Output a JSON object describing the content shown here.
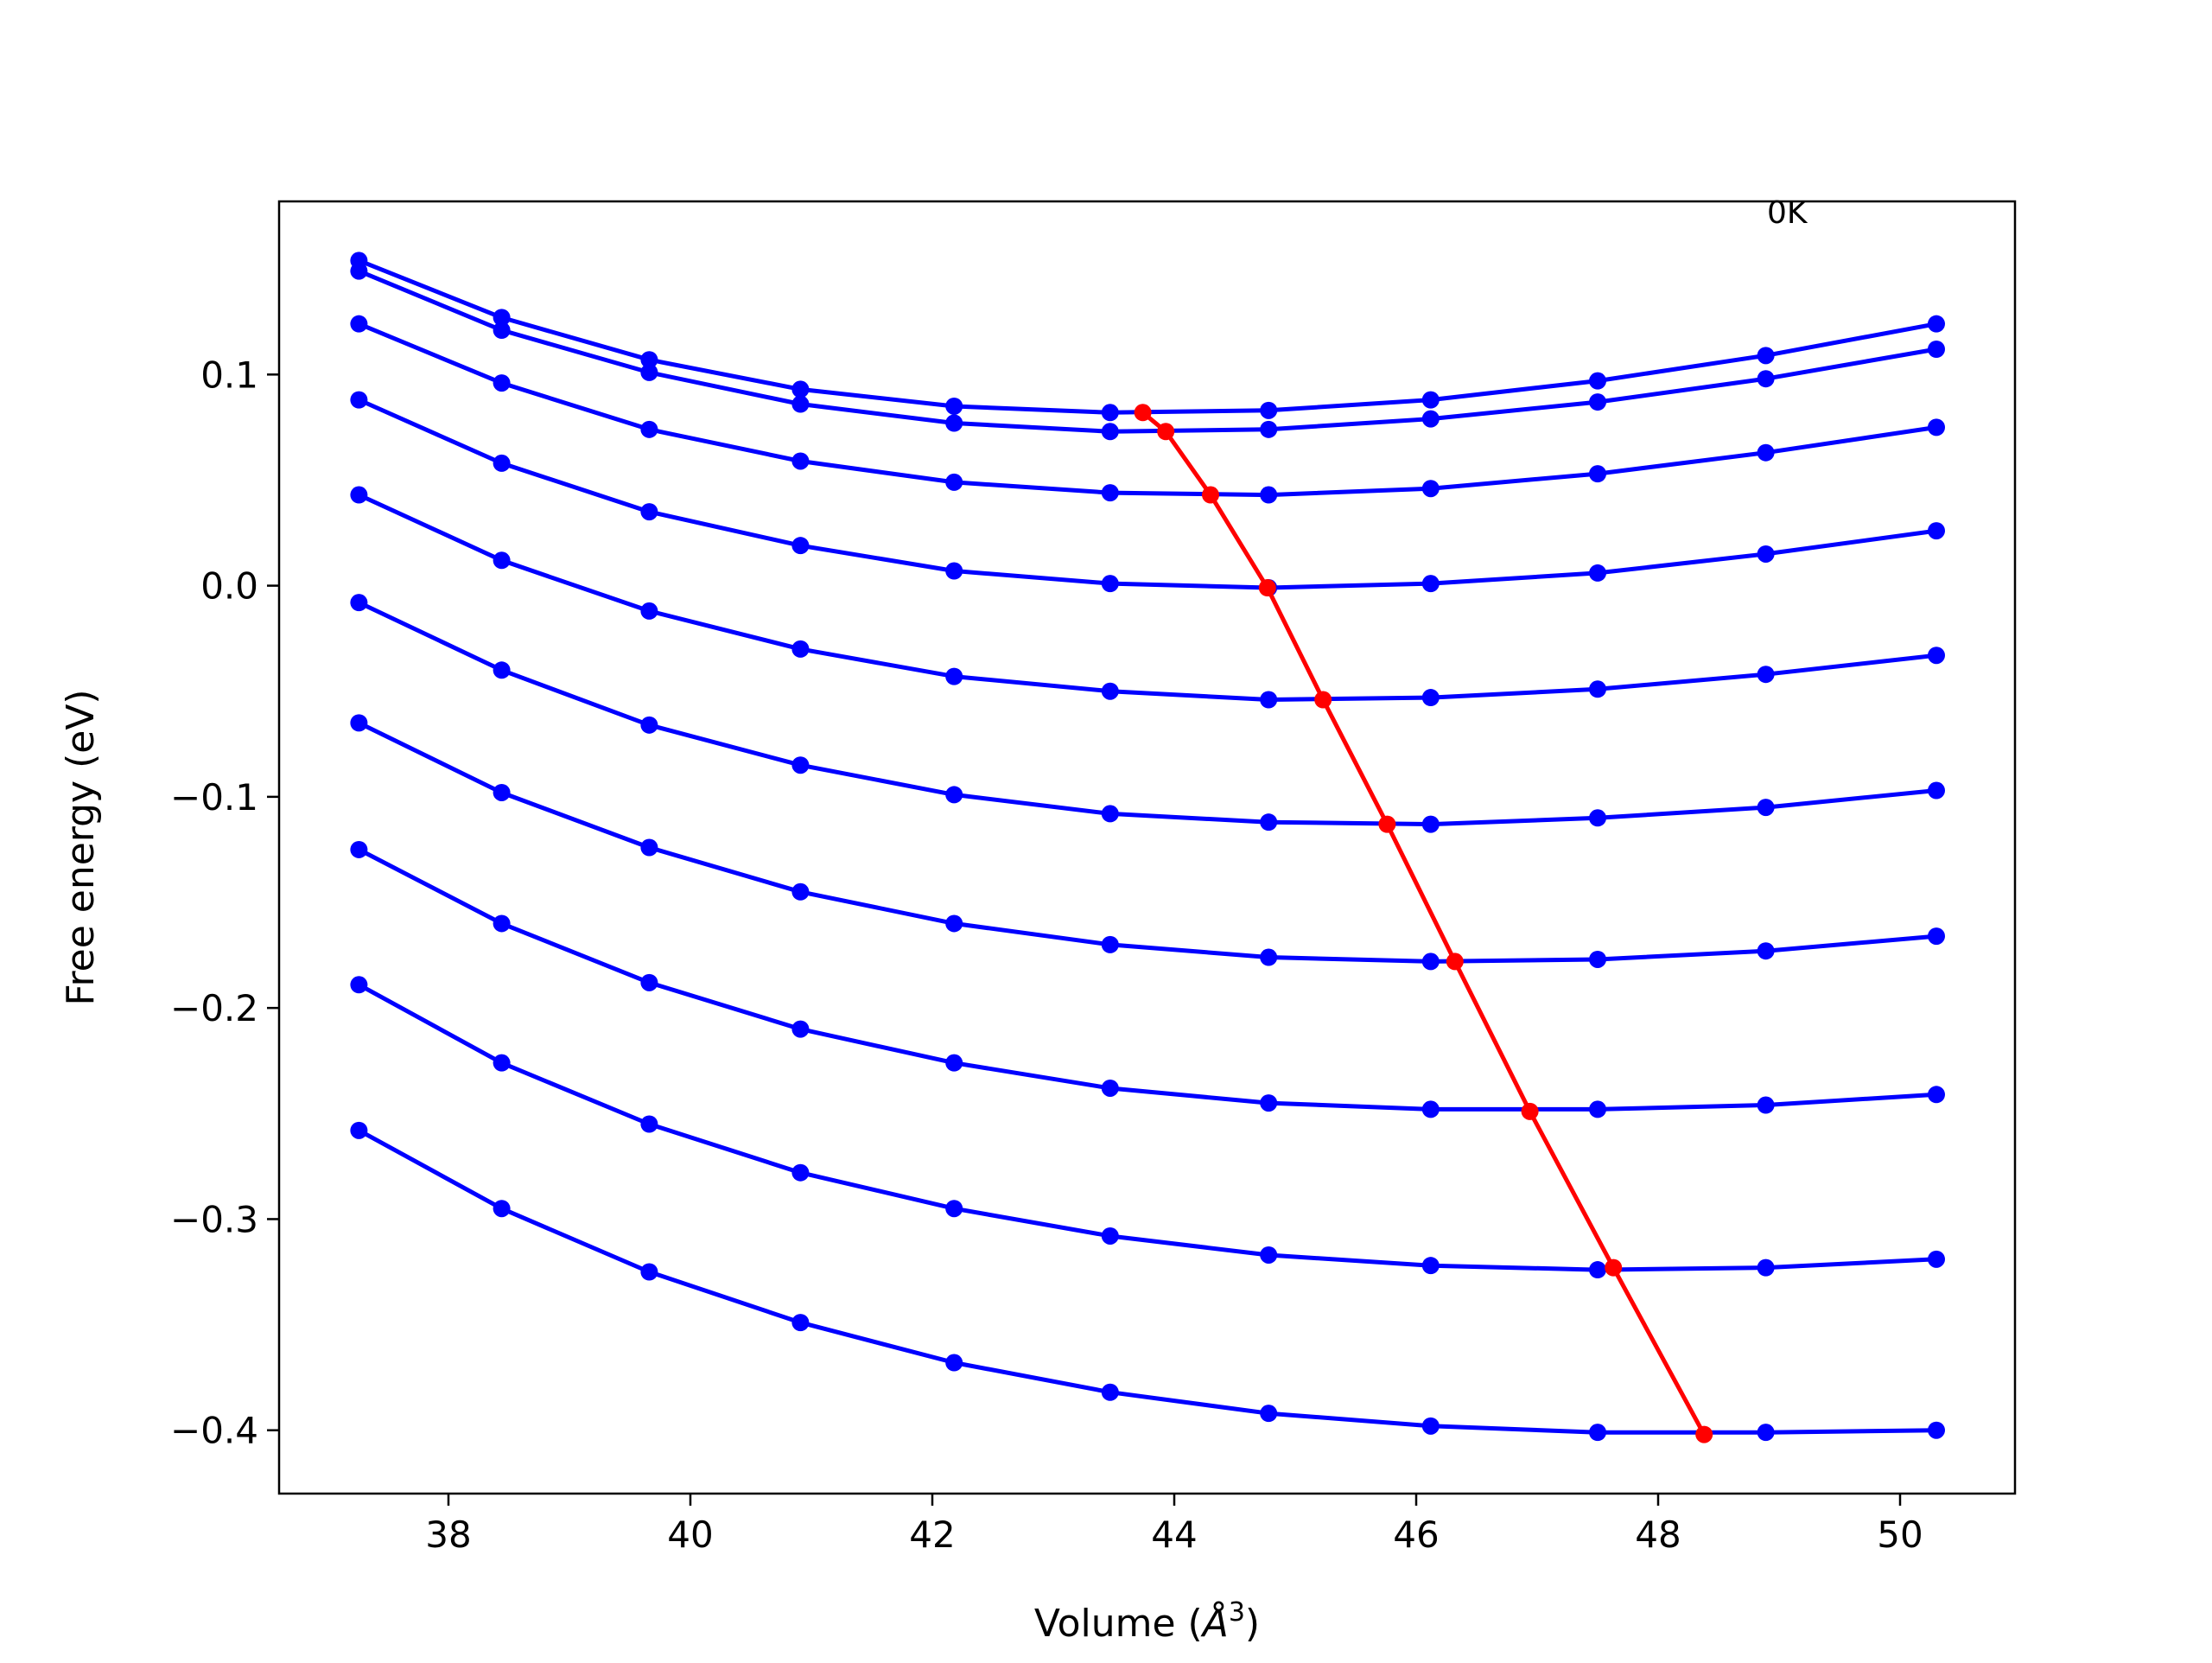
{
  "chart_data": {
    "type": "line",
    "title": "",
    "annotation": "0K",
    "xlabel": "Volume (",
    "xlabel_unit": "Å",
    "xlabel_exp": "3",
    "xlabel_close": ")",
    "ylabel": "Free energy (eV)",
    "xlim": [
      36.6,
      50.95
    ],
    "ylim": [
      -0.43,
      0.182
    ],
    "grid": false,
    "xticks": [
      38,
      40,
      42,
      44,
      46,
      48,
      50
    ],
    "xtick_labels": [
      "38",
      "40",
      "42",
      "44",
      "46",
      "48",
      "50"
    ],
    "yticks": [
      0.1,
      0.0,
      -0.1,
      -0.2,
      -0.3,
      -0.4
    ],
    "ytick_labels": [
      "0.1",
      "0.0",
      "−0.1",
      "−0.2",
      "−0.3",
      "−0.4"
    ],
    "colors": {
      "series": "#0000ff",
      "minima": "#ff0000",
      "axes": "#000000"
    },
    "x": [
      37.26,
      38.44,
      39.66,
      40.91,
      42.18,
      43.47,
      44.78,
      46.12,
      47.5,
      48.89,
      50.3
    ],
    "series": [
      {
        "values": [
          0.154,
          0.127,
          0.107,
          0.093,
          0.085,
          0.082,
          0.083,
          0.088,
          0.097,
          0.109,
          0.124
        ]
      },
      {
        "values": [
          0.149,
          0.121,
          0.101,
          0.086,
          0.077,
          0.073,
          0.074,
          0.079,
          0.087,
          0.098,
          0.112
        ]
      },
      {
        "values": [
          0.124,
          0.096,
          0.074,
          0.059,
          0.049,
          0.044,
          0.043,
          0.046,
          0.053,
          0.063,
          0.075
        ]
      },
      {
        "values": [
          0.088,
          0.058,
          0.035,
          0.019,
          0.007,
          0.001,
          -0.001,
          0.001,
          0.006,
          0.015,
          0.026
        ]
      },
      {
        "values": [
          0.043,
          0.012,
          -0.012,
          -0.03,
          -0.043,
          -0.05,
          -0.054,
          -0.053,
          -0.049,
          -0.042,
          -0.033
        ]
      },
      {
        "values": [
          -0.008,
          -0.04,
          -0.066,
          -0.085,
          -0.099,
          -0.108,
          -0.112,
          -0.113,
          -0.11,
          -0.105,
          -0.097
        ]
      },
      {
        "values": [
          -0.065,
          -0.098,
          -0.124,
          -0.145,
          -0.16,
          -0.17,
          -0.176,
          -0.178,
          -0.177,
          -0.173,
          -0.166
        ]
      },
      {
        "values": [
          -0.125,
          -0.16,
          -0.188,
          -0.21,
          -0.226,
          -0.238,
          -0.245,
          -0.248,
          -0.248,
          -0.246,
          -0.241
        ]
      },
      {
        "values": [
          -0.189,
          -0.226,
          -0.255,
          -0.278,
          -0.295,
          -0.308,
          -0.317,
          -0.322,
          -0.324,
          -0.323,
          -0.319
        ]
      },
      {
        "values": [
          -0.258,
          -0.295,
          -0.325,
          -0.349,
          -0.368,
          -0.382,
          -0.392,
          -0.398,
          -0.401,
          -0.401,
          -0.4
        ]
      }
    ],
    "minima": {
      "x": [
        43.74,
        43.93,
        44.3,
        44.77,
        45.23,
        45.76,
        46.32,
        46.94,
        47.63,
        48.38
      ],
      "y": [
        0.082,
        0.073,
        0.043,
        -0.001,
        -0.054,
        -0.113,
        -0.178,
        -0.249,
        -0.323,
        -0.402
      ]
    }
  }
}
